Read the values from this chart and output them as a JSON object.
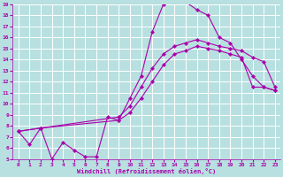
{
  "xlabel": "Windchill (Refroidissement éolien,°C)",
  "bg_color": "#b8e0e0",
  "grid_color": "#ffffff",
  "line_color": "#aa00aa",
  "marker_color": "#aa00aa",
  "xlim": [
    -0.5,
    23.5
  ],
  "ylim": [
    5,
    19
  ],
  "yticks": [
    5,
    6,
    7,
    8,
    9,
    10,
    11,
    12,
    13,
    14,
    15,
    16,
    17,
    18,
    19
  ],
  "xticks": [
    0,
    1,
    2,
    3,
    4,
    5,
    6,
    7,
    8,
    9,
    10,
    11,
    12,
    13,
    14,
    15,
    16,
    17,
    18,
    19,
    20,
    21,
    22,
    23
  ],
  "lines": [
    {
      "x": [
        0,
        1,
        2,
        3,
        4,
        5,
        6,
        7,
        8,
        9,
        10,
        11,
        12,
        13,
        14,
        15,
        16,
        17,
        18,
        19,
        20,
        21,
        22,
        23
      ],
      "y": [
        7.5,
        6.3,
        7.8,
        5.0,
        6.5,
        5.8,
        5.2,
        5.2,
        8.8,
        8.5,
        10.5,
        12.5,
        16.5,
        19.0,
        19.2,
        19.2,
        18.5,
        18.0,
        16.0,
        15.5,
        14.0,
        12.5,
        11.5,
        11.2
      ]
    },
    {
      "x": [
        0,
        2,
        9,
        10,
        11,
        12,
        13,
        14,
        15,
        16,
        17,
        18,
        19,
        20,
        21,
        22,
        23
      ],
      "y": [
        7.5,
        7.8,
        8.8,
        9.8,
        11.5,
        13.2,
        14.5,
        15.2,
        15.5,
        15.8,
        15.5,
        15.2,
        15.0,
        14.8,
        14.2,
        13.8,
        11.5
      ]
    },
    {
      "x": [
        0,
        2,
        9,
        10,
        11,
        12,
        13,
        14,
        15,
        16,
        17,
        18,
        19,
        20,
        21,
        22,
        23
      ],
      "y": [
        7.5,
        7.8,
        8.5,
        9.2,
        10.5,
        12.0,
        13.5,
        14.5,
        14.8,
        15.2,
        15.0,
        14.8,
        14.5,
        14.2,
        11.5,
        11.5,
        11.2
      ]
    }
  ]
}
